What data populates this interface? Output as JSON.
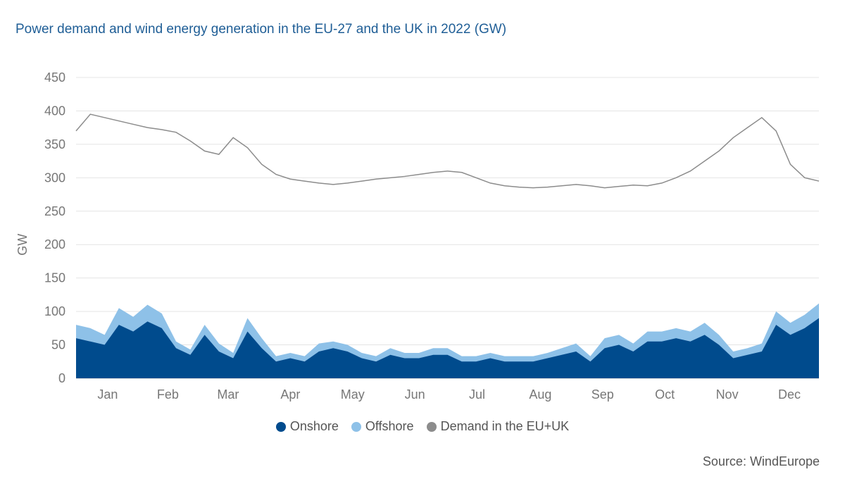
{
  "title": "Power demand and wind energy generation in the EU-27 and the UK in 2022 (GW)",
  "source": "Source: WindEurope",
  "legend": [
    {
      "label": "Onshore",
      "color": "#004b8d"
    },
    {
      "label": "Offshore",
      "color": "#8ec1e8"
    },
    {
      "label": "Demand in the EU+UK",
      "color": "#8c8c8c"
    }
  ],
  "chart_data": {
    "type": "area",
    "title": "Power demand and wind energy generation in the EU-27 and the UK in 2022 (GW)",
    "ylabel": "GW",
    "xlabel": "",
    "ylim": [
      0,
      450
    ],
    "yticks": [
      0,
      50,
      100,
      150,
      200,
      250,
      300,
      350,
      400,
      450
    ],
    "months": [
      "Jan",
      "Feb",
      "Mar",
      "Apr",
      "May",
      "Jun",
      "Jul",
      "Aug",
      "Sep",
      "Oct",
      "Nov",
      "Dec"
    ],
    "grid": true,
    "legend_position": "bottom",
    "x_unit": "day of 2022 (1 = 1 Jan)",
    "x": [
      1,
      8,
      15,
      22,
      29,
      36,
      43,
      50,
      57,
      64,
      71,
      78,
      85,
      92,
      99,
      106,
      113,
      120,
      127,
      134,
      141,
      148,
      155,
      162,
      169,
      176,
      183,
      190,
      197,
      204,
      211,
      218,
      225,
      232,
      239,
      246,
      253,
      260,
      267,
      274,
      281,
      288,
      295,
      302,
      309,
      316,
      323,
      330,
      337,
      344,
      351,
      358,
      365
    ],
    "series": [
      {
        "name": "Onshore",
        "values": [
          60,
          55,
          50,
          80,
          70,
          85,
          75,
          45,
          35,
          65,
          40,
          30,
          70,
          45,
          25,
          30,
          25,
          40,
          45,
          40,
          30,
          25,
          35,
          30,
          30,
          35,
          35,
          25,
          25,
          30,
          25,
          25,
          25,
          30,
          35,
          40,
          25,
          45,
          50,
          40,
          55,
          55,
          60,
          55,
          65,
          50,
          30,
          35,
          40,
          80,
          65,
          75,
          90
        ]
      },
      {
        "name": "Offshore",
        "values": [
          20,
          20,
          15,
          25,
          22,
          25,
          22,
          10,
          8,
          15,
          12,
          8,
          20,
          15,
          8,
          8,
          8,
          12,
          10,
          10,
          8,
          8,
          10,
          8,
          8,
          10,
          10,
          8,
          8,
          8,
          8,
          8,
          8,
          8,
          10,
          12,
          8,
          15,
          15,
          12,
          15,
          15,
          15,
          15,
          18,
          15,
          10,
          10,
          12,
          20,
          18,
          20,
          22
        ]
      },
      {
        "name": "Demand in the EU+UK",
        "values": [
          370,
          395,
          390,
          385,
          380,
          375,
          372,
          368,
          355,
          340,
          335,
          360,
          345,
          320,
          305,
          298,
          295,
          292,
          290,
          292,
          295,
          298,
          300,
          302,
          305,
          308,
          310,
          308,
          300,
          292,
          288,
          286,
          285,
          286,
          288,
          290,
          288,
          285,
          287,
          289,
          288,
          292,
          300,
          310,
          325,
          340,
          360,
          375,
          390,
          370,
          320,
          300,
          295
        ]
      }
    ]
  }
}
